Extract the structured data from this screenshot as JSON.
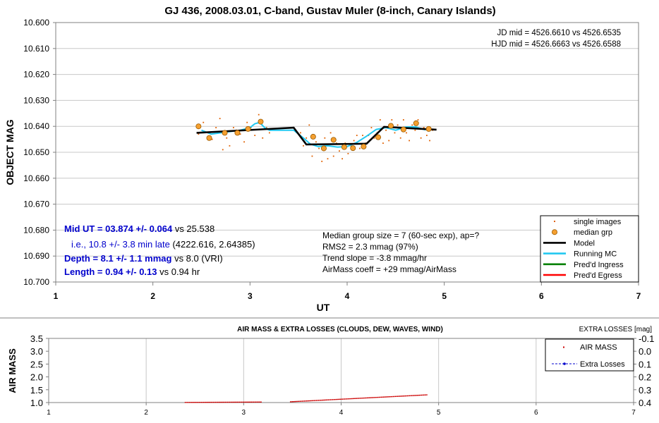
{
  "chart_data": [
    {
      "type": "scatter",
      "title": "GJ 436, 2008.03.01, C-band, Gustav Muler (8-inch, Canary Islands)",
      "xlabel": "UT",
      "ylabel": "OBJECT MAG",
      "xlim": [
        1,
        7
      ],
      "ylim": [
        10.7,
        10.6
      ],
      "y_inverted": true,
      "x_ticks": [
        "1",
        "2",
        "3",
        "4",
        "5",
        "6",
        "7"
      ],
      "y_ticks": [
        "10.600",
        "10.610",
        "10.620",
        "10.630",
        "10.640",
        "10.650",
        "10.660",
        "10.670",
        "10.680",
        "10.690",
        "10.700"
      ],
      "grid": "horizontal",
      "legend_placement": "bottom-right",
      "jd_lines": [
        "JD mid = 4526.6610 vs 4526.6535",
        "HJD mid = 4526.6663 vs 4526.6588"
      ],
      "results": [
        {
          "value": "Mid UT = 03.874 +/- 0.064",
          "note": " vs 25.538",
          "bold": true
        },
        {
          "value": "i.e., 10.8 +/- 3.8 min late",
          "note": " (4222.616, 2.64385)",
          "bold": false
        },
        {
          "value": "Depth = 8.1 +/- 1.1 mmag",
          "note": " vs 8.0 (VRI)",
          "bold": true
        },
        {
          "value": "Length = 0.94 +/- 0.13",
          "note": " vs 0.94 hr",
          "bold": true
        }
      ],
      "stats_lines": [
        "Median group size = 7 (60-sec exp), ap=?",
        "RMS2 = 2.3 mmag (97%)",
        "Trend slope = -3.8 mmag/hr",
        "AirMass coeff = +29 mmag/AirMass"
      ],
      "legend": [
        {
          "label": "single images",
          "kind": "dot",
          "color": "#e06000"
        },
        {
          "label": "median grp",
          "kind": "circle",
          "color": "#f5a030"
        },
        {
          "label": "Model",
          "kind": "line",
          "color": "#000000"
        },
        {
          "label": "Running MC",
          "kind": "line",
          "color": "#22c8f0"
        },
        {
          "label": "Pred'd Ingress",
          "kind": "line",
          "color": "#008000"
        },
        {
          "label": "Pred'd Egress",
          "kind": "line",
          "color": "#ff0000"
        }
      ],
      "series": [
        {
          "name": "single images",
          "x": [
            2.47,
            2.52,
            2.57,
            2.61,
            2.65,
            2.69,
            2.72,
            2.76,
            2.79,
            2.83,
            2.86,
            2.9,
            2.94,
            2.97,
            3.01,
            3.05,
            3.09,
            3.13,
            3.17,
            3.2,
            3.52,
            3.55,
            3.58,
            3.61,
            3.64,
            3.68,
            3.71,
            3.74,
            3.77,
            3.8,
            3.83,
            3.86,
            3.89,
            3.92,
            3.95,
            3.98,
            4.01,
            4.04,
            4.07,
            4.1,
            4.13,
            4.16,
            4.19,
            4.22,
            4.25,
            4.28,
            4.31,
            4.34,
            4.37,
            4.4,
            4.43,
            4.46,
            4.49,
            4.52,
            4.55,
            4.58,
            4.61,
            4.64,
            4.67,
            4.7,
            4.73,
            4.76,
            4.79,
            4.82,
            4.85,
            4.88
          ],
          "y": [
            10.643,
            10.6385,
            10.6425,
            10.645,
            10.6405,
            10.637,
            10.649,
            10.6445,
            10.6475,
            10.6405,
            10.6415,
            10.643,
            10.646,
            10.6385,
            10.6405,
            10.6435,
            10.6355,
            10.6445,
            10.6405,
            10.6425,
            10.6425,
            10.6475,
            10.6445,
            10.6395,
            10.6515,
            10.646,
            10.6485,
            10.6535,
            10.6445,
            10.6525,
            10.6425,
            10.6515,
            10.6465,
            10.6495,
            10.6525,
            10.6465,
            10.6505,
            10.6475,
            10.6455,
            10.6435,
            10.6485,
            10.6435,
            10.6465,
            10.6435,
            10.6405,
            10.6445,
            10.6425,
            10.6375,
            10.6465,
            10.6415,
            10.6455,
            10.6375,
            10.6425,
            10.6395,
            10.6445,
            10.6375,
            10.6425,
            10.6455,
            10.6395,
            10.6415,
            10.6375,
            10.6445,
            10.6405,
            10.6435,
            10.6455,
            10.6415
          ]
        },
        {
          "name": "median grp",
          "x": [
            2.47,
            2.58,
            2.74,
            2.87,
            2.98,
            3.11,
            3.65,
            3.76,
            3.86,
            3.97,
            4.06,
            4.17,
            4.32,
            4.45,
            4.58,
            4.71,
            4.84
          ],
          "y": [
            10.64,
            10.6445,
            10.6425,
            10.6425,
            10.641,
            10.6382,
            10.644,
            10.6485,
            10.6452,
            10.648,
            10.6484,
            10.6478,
            10.6442,
            10.6398,
            10.6412,
            10.6388,
            10.641
          ]
        },
        {
          "name": "Model",
          "x": [
            2.45,
            3.45,
            3.58,
            4.2,
            4.38,
            4.92
          ],
          "y": [
            10.6425,
            10.6405,
            10.647,
            10.6467,
            10.6402,
            10.6413
          ]
        },
        {
          "name": "Running MC",
          "x": [
            2.5,
            2.6,
            2.7,
            2.8,
            2.9,
            3.0,
            3.05,
            3.1,
            3.15,
            3.2,
            3.3,
            3.45,
            3.55,
            3.62,
            3.7,
            3.8,
            3.9,
            4.0,
            4.1,
            4.2,
            4.3,
            4.4,
            4.5,
            4.6,
            4.7,
            4.8,
            4.85
          ],
          "y": [
            10.6415,
            10.643,
            10.6425,
            10.642,
            10.6415,
            10.6405,
            10.639,
            10.6385,
            10.6405,
            10.6415,
            10.6415,
            10.6415,
            10.6445,
            10.6468,
            10.6478,
            10.6475,
            10.648,
            10.6478,
            10.6462,
            10.6438,
            10.6412,
            10.6405,
            10.6415,
            10.6403,
            10.6402,
            10.6413,
            10.6408
          ]
        }
      ]
    },
    {
      "type": "scatter",
      "title": "AIR MASS & EXTRA LOSSES (CLOUDS, DEW, WAVES, WIND)",
      "ylabel": "AIR MASS",
      "y2label": "EXTRA LOSSES [mag]",
      "xlim": [
        1,
        7
      ],
      "ylim": [
        1.0,
        3.5
      ],
      "y2lim": [
        0.4,
        -0.1
      ],
      "x_ticks": [
        "1",
        "2",
        "3",
        "4",
        "5",
        "6",
        "7"
      ],
      "y_ticks": [
        "1.0",
        "1.5",
        "2.0",
        "2.5",
        "3.0",
        "3.5"
      ],
      "y2_ticks": [
        "0.4",
        "0.3",
        "0.2",
        "0.1",
        "0.0",
        "-0.1"
      ],
      "grid": "vertical",
      "legend_placement": "top-right",
      "legend": [
        {
          "label": "AIR MASS",
          "kind": "dot",
          "color": "#cc0000"
        },
        {
          "label": "Extra Losses",
          "kind": "dashdot",
          "color": "#0000cc"
        }
      ],
      "series": [
        {
          "name": "AIR MASS",
          "segments": [
            {
              "x_start": 2.4,
              "x_end": 3.18,
              "y_start": 1.005,
              "y_end": 1.02
            },
            {
              "x_start": 3.48,
              "x_end": 4.88,
              "y_start": 1.03,
              "y_end": 1.3
            }
          ]
        },
        {
          "name": "Extra Losses",
          "values": []
        }
      ]
    }
  ]
}
